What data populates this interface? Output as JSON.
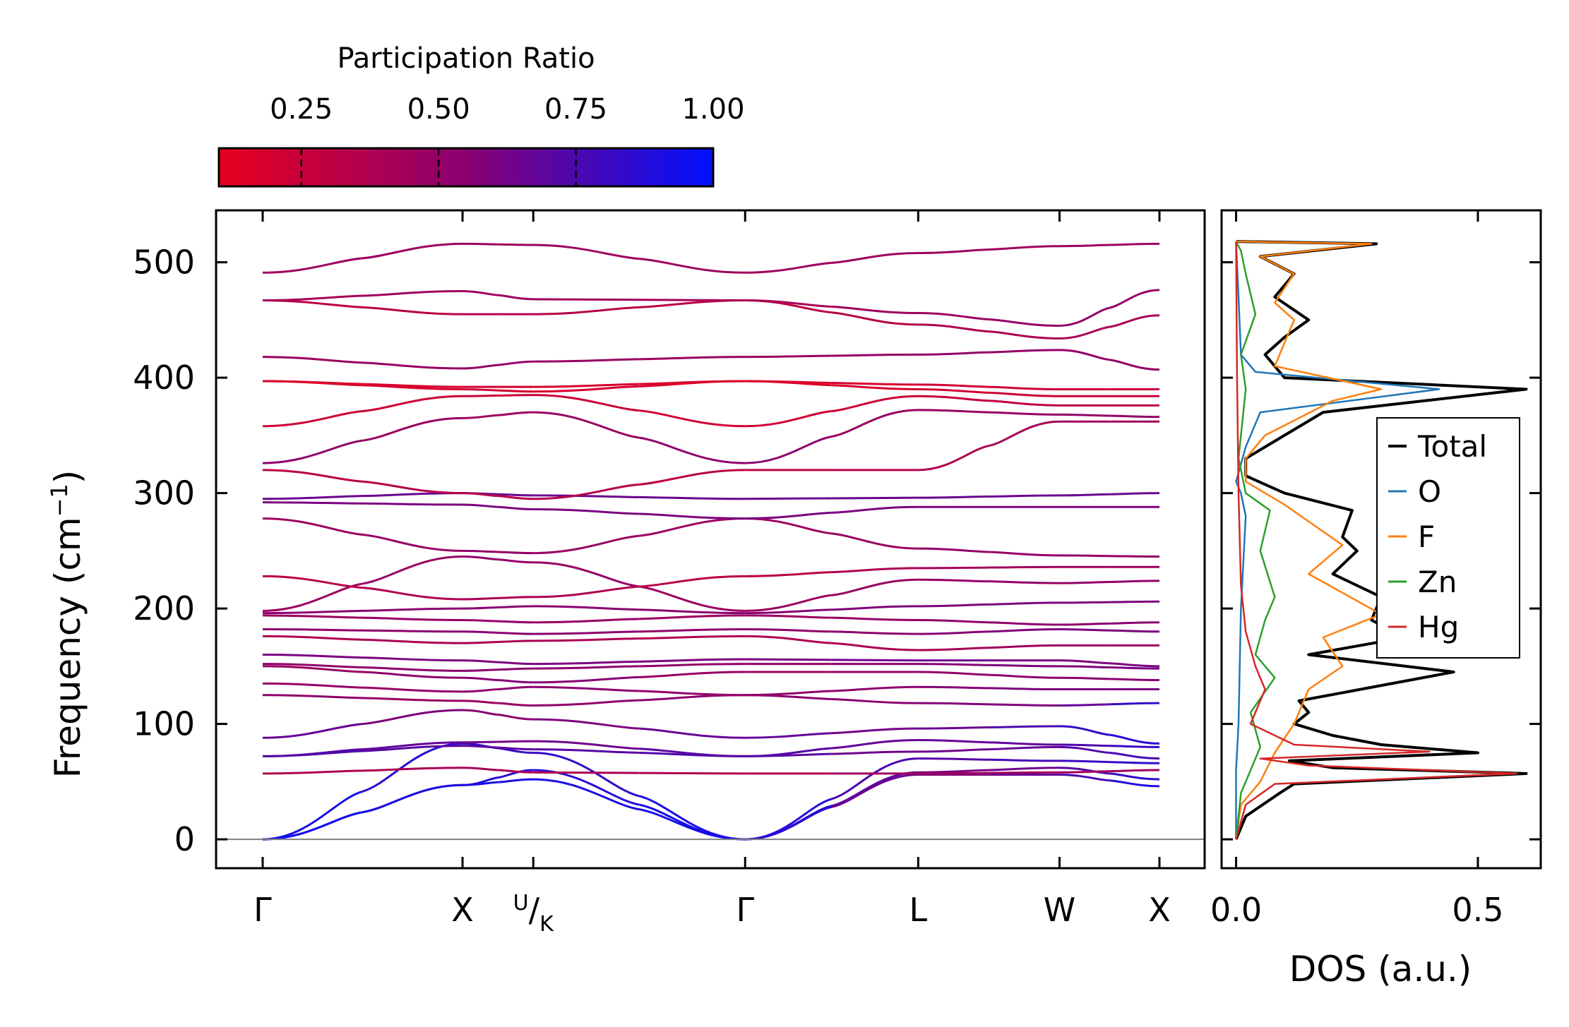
{
  "chart_data": [
    {
      "type": "line",
      "name": "phonon-band-structure",
      "ylabel": "Frequency (cm",
      "ylabel_sup": "−1",
      "ylabel_end": ")",
      "ylim": [
        -25,
        545
      ],
      "y_ticks": [
        0,
        100,
        200,
        300,
        400,
        500
      ],
      "k_path": [
        {
          "label": "Γ",
          "x": 0.0
        },
        {
          "label": "X",
          "x": 1.0
        },
        {
          "label": "U/K",
          "x": 1.354
        },
        {
          "label": "Γ",
          "x": 2.414
        },
        {
          "label": "L",
          "x": 3.28
        },
        {
          "label": "W",
          "x": 3.987
        },
        {
          "label": "X",
          "x": 4.487
        }
      ],
      "colorbar": {
        "title": "Participation Ratio",
        "range": [
          0.1,
          1.0
        ],
        "ticks": [
          "0.25",
          "0.50",
          "0.75",
          "1.00"
        ],
        "tick_values": [
          0.25,
          0.5,
          0.75,
          1.0
        ],
        "color_low": "#e8001e",
        "color_mid": "#8a0070",
        "color_high": "#0010ff"
      },
      "bands": [
        {
          "f": [
            0,
            47,
            52,
            0,
            56,
            56,
            46
          ],
          "pr": [
            0.95,
            0.95,
            0.9,
            0.95,
            0.55,
            0.7,
            0.95
          ]
        },
        {
          "f": [
            0,
            47,
            60,
            0,
            58,
            62,
            52
          ],
          "pr": [
            0.95,
            0.9,
            0.85,
            0.95,
            0.6,
            0.65,
            0.9
          ]
        },
        {
          "f": [
            0,
            83,
            75,
            0,
            70,
            68,
            66
          ],
          "pr": [
            0.95,
            0.85,
            0.8,
            0.95,
            0.7,
            0.8,
            0.85
          ]
        },
        {
          "f": [
            57,
            62,
            58,
            57,
            57,
            58,
            60
          ],
          "pr": [
            0.35,
            0.4,
            0.4,
            0.35,
            0.45,
            0.45,
            0.45
          ]
        },
        {
          "f": [
            72,
            81,
            78,
            72,
            76,
            80,
            70
          ],
          "pr": [
            0.75,
            0.7,
            0.7,
            0.75,
            0.6,
            0.7,
            0.8
          ]
        },
        {
          "f": [
            72,
            84,
            85,
            72,
            86,
            82,
            80
          ],
          "pr": [
            0.75,
            0.65,
            0.6,
            0.75,
            0.65,
            0.7,
            0.85
          ]
        },
        {
          "f": [
            88,
            112,
            104,
            88,
            96,
            98,
            83
          ],
          "pr": [
            0.7,
            0.55,
            0.55,
            0.7,
            0.6,
            0.8,
            0.9
          ]
        },
        {
          "f": [
            125,
            120,
            116,
            125,
            118,
            116,
            118
          ],
          "pr": [
            0.55,
            0.45,
            0.5,
            0.55,
            0.55,
            0.6,
            0.9
          ]
        },
        {
          "f": [
            135,
            128,
            132,
            125,
            132,
            130,
            130
          ],
          "pr": [
            0.5,
            0.5,
            0.55,
            0.5,
            0.55,
            0.6,
            0.6
          ]
        },
        {
          "f": [
            150,
            140,
            136,
            145,
            145,
            140,
            138
          ],
          "pr": [
            0.45,
            0.55,
            0.6,
            0.45,
            0.5,
            0.55,
            0.55
          ]
        },
        {
          "f": [
            152,
            146,
            148,
            152,
            152,
            150,
            148
          ],
          "pr": [
            0.5,
            0.55,
            0.55,
            0.5,
            0.55,
            0.6,
            0.6
          ]
        },
        {
          "f": [
            160,
            155,
            152,
            156,
            155,
            155,
            150
          ],
          "pr": [
            0.6,
            0.6,
            0.6,
            0.6,
            0.65,
            0.6,
            0.6
          ]
        },
        {
          "f": [
            176,
            170,
            172,
            176,
            164,
            168,
            168
          ],
          "pr": [
            0.35,
            0.4,
            0.4,
            0.35,
            0.4,
            0.45,
            0.45
          ]
        },
        {
          "f": [
            182,
            180,
            178,
            182,
            178,
            182,
            180
          ],
          "pr": [
            0.5,
            0.55,
            0.55,
            0.5,
            0.55,
            0.6,
            0.6
          ]
        },
        {
          "f": [
            194,
            190,
            188,
            194,
            190,
            186,
            188
          ],
          "pr": [
            0.45,
            0.5,
            0.5,
            0.45,
            0.5,
            0.55,
            0.55
          ]
        },
        {
          "f": [
            196,
            200,
            202,
            196,
            202,
            205,
            206
          ],
          "pr": [
            0.55,
            0.55,
            0.55,
            0.55,
            0.6,
            0.6,
            0.6
          ]
        },
        {
          "f": [
            198,
            245,
            240,
            198,
            225,
            222,
            224
          ],
          "pr": [
            0.45,
            0.5,
            0.5,
            0.45,
            0.5,
            0.5,
            0.5
          ]
        },
        {
          "f": [
            228,
            208,
            210,
            228,
            235,
            236,
            236
          ],
          "pr": [
            0.3,
            0.4,
            0.4,
            0.3,
            0.4,
            0.45,
            0.45
          ]
        },
        {
          "f": [
            278,
            250,
            248,
            278,
            252,
            246,
            245
          ],
          "pr": [
            0.45,
            0.5,
            0.5,
            0.45,
            0.5,
            0.5,
            0.5
          ]
        },
        {
          "f": [
            292,
            290,
            286,
            278,
            288,
            288,
            288
          ],
          "pr": [
            0.6,
            0.6,
            0.6,
            0.6,
            0.6,
            0.6,
            0.6
          ]
        },
        {
          "f": [
            295,
            300,
            298,
            295,
            296,
            298,
            300
          ],
          "pr": [
            0.65,
            0.65,
            0.65,
            0.65,
            0.65,
            0.65,
            0.65
          ]
        },
        {
          "f": [
            320,
            300,
            295,
            320,
            320,
            362,
            362
          ],
          "pr": [
            0.3,
            0.35,
            0.35,
            0.3,
            0.35,
            0.45,
            0.45
          ]
        },
        {
          "f": [
            326,
            365,
            370,
            326,
            372,
            368,
            366
          ],
          "pr": [
            0.55,
            0.45,
            0.45,
            0.55,
            0.45,
            0.5,
            0.5
          ]
        },
        {
          "f": [
            358,
            384,
            385,
            358,
            384,
            376,
            376
          ],
          "pr": [
            0.2,
            0.25,
            0.25,
            0.2,
            0.25,
            0.3,
            0.3
          ]
        },
        {
          "f": [
            397,
            390,
            388,
            397,
            390,
            384,
            384
          ],
          "pr": [
            0.15,
            0.2,
            0.2,
            0.15,
            0.2,
            0.25,
            0.25
          ]
        },
        {
          "f": [
            397,
            392,
            392,
            397,
            394,
            390,
            390
          ],
          "pr": [
            0.15,
            0.2,
            0.2,
            0.15,
            0.2,
            0.25,
            0.25
          ]
        },
        {
          "f": [
            418,
            408,
            414,
            418,
            420,
            424,
            407
          ],
          "pr": [
            0.45,
            0.5,
            0.5,
            0.45,
            0.5,
            0.5,
            0.5
          ]
        },
        {
          "f": [
            467,
            455,
            455,
            467,
            446,
            434,
            454
          ],
          "pr": [
            0.3,
            0.35,
            0.35,
            0.3,
            0.35,
            0.4,
            0.4
          ]
        },
        {
          "f": [
            467,
            475,
            468,
            467,
            456,
            445,
            476
          ],
          "pr": [
            0.4,
            0.45,
            0.45,
            0.4,
            0.45,
            0.5,
            0.5
          ]
        },
        {
          "f": [
            491,
            516,
            515,
            491,
            508,
            514,
            516
          ],
          "pr": [
            0.45,
            0.45,
            0.45,
            0.45,
            0.45,
            0.45,
            0.45
          ]
        }
      ]
    },
    {
      "type": "line",
      "name": "density-of-states",
      "xlabel": "DOS (a.u.)",
      "xlim": [
        -0.03,
        0.63
      ],
      "ylim": [
        -25,
        545
      ],
      "x_ticks": [
        "0.0",
        "0.5"
      ],
      "x_tick_values": [
        0.0,
        0.5
      ],
      "legend_position": "center-right",
      "series": [
        {
          "name": "Total",
          "color": "#000000",
          "points": [
            [
              0,
              0
            ],
            [
              0.02,
              20
            ],
            [
              0.09,
              40
            ],
            [
              0.12,
              48
            ],
            [
              0.6,
              57
            ],
            [
              0.2,
              62
            ],
            [
              0.11,
              68
            ],
            [
              0.5,
              75
            ],
            [
              0.3,
              82
            ],
            [
              0.2,
              90
            ],
            [
              0.12,
              100
            ],
            [
              0.15,
              110
            ],
            [
              0.13,
              120
            ],
            [
              0.45,
              145
            ],
            [
              0.15,
              160
            ],
            [
              0.35,
              175
            ],
            [
              0.28,
              190
            ],
            [
              0.3,
              210
            ],
            [
              0.2,
              230
            ],
            [
              0.25,
              250
            ],
            [
              0.22,
              262
            ],
            [
              0.24,
              285
            ],
            [
              0.1,
              300
            ],
            [
              0.02,
              315
            ],
            [
              0.02,
              330
            ],
            [
              0.08,
              345
            ],
            [
              0.18,
              370
            ],
            [
              0.6,
              390
            ],
            [
              0.1,
              400
            ],
            [
              0.06,
              420
            ],
            [
              0.1,
              435
            ],
            [
              0.15,
              450
            ],
            [
              0.08,
              470
            ],
            [
              0.12,
              490
            ],
            [
              0.05,
              505
            ],
            [
              0.29,
              516
            ],
            [
              0,
              518
            ]
          ]
        },
        {
          "name": "O",
          "color": "#1f77b4",
          "points": [
            [
              0,
              0
            ],
            [
              0,
              60
            ],
            [
              0.005,
              100
            ],
            [
              0.01,
              200
            ],
            [
              0.02,
              280
            ],
            [
              0.01,
              300
            ],
            [
              0,
              310
            ],
            [
              0.02,
              340
            ],
            [
              0.05,
              370
            ],
            [
              0.42,
              390
            ],
            [
              0.04,
              405
            ],
            [
              0.01,
              420
            ],
            [
              0.005,
              470
            ],
            [
              0,
              518
            ]
          ]
        },
        {
          "name": "F",
          "color": "#ff7f0e",
          "points": [
            [
              0,
              0
            ],
            [
              0.01,
              30
            ],
            [
              0.05,
              50
            ],
            [
              0.08,
              75
            ],
            [
              0.12,
              100
            ],
            [
              0.15,
              130
            ],
            [
              0.22,
              150
            ],
            [
              0.18,
              175
            ],
            [
              0.3,
              195
            ],
            [
              0.15,
              230
            ],
            [
              0.22,
              255
            ],
            [
              0.1,
              290
            ],
            [
              0.02,
              310
            ],
            [
              0.02,
              330
            ],
            [
              0.06,
              350
            ],
            [
              0.2,
              380
            ],
            [
              0.3,
              390
            ],
            [
              0.08,
              410
            ],
            [
              0.12,
              450
            ],
            [
              0.08,
              465
            ],
            [
              0.12,
              490
            ],
            [
              0.05,
              505
            ],
            [
              0.28,
              516
            ],
            [
              0,
              518
            ]
          ]
        },
        {
          "name": "Zn",
          "color": "#2ca02c",
          "points": [
            [
              0,
              0
            ],
            [
              0.01,
              40
            ],
            [
              0.05,
              80
            ],
            [
              0.03,
              110
            ],
            [
              0.08,
              140
            ],
            [
              0.04,
              160
            ],
            [
              0.06,
              190
            ],
            [
              0.08,
              210
            ],
            [
              0.05,
              250
            ],
            [
              0.07,
              285
            ],
            [
              0.02,
              300
            ],
            [
              0.005,
              330
            ],
            [
              0.02,
              390
            ],
            [
              0.01,
              420
            ],
            [
              0.04,
              455
            ],
            [
              0.02,
              490
            ],
            [
              0.01,
              510
            ],
            [
              0,
              518
            ]
          ]
        },
        {
          "name": "Hg",
          "color": "#d62728",
          "points": [
            [
              0,
              0
            ],
            [
              0.02,
              30
            ],
            [
              0.08,
              48
            ],
            [
              0.58,
              57
            ],
            [
              0.15,
              64
            ],
            [
              0.05,
              70
            ],
            [
              0.4,
              76
            ],
            [
              0.12,
              82
            ],
            [
              0.03,
              100
            ],
            [
              0.06,
              130
            ],
            [
              0.04,
              150
            ],
            [
              0.02,
              180
            ],
            [
              0.01,
              220
            ],
            [
              0.005,
              300
            ],
            [
              0.002,
              400
            ],
            [
              0,
              518
            ]
          ]
        }
      ]
    }
  ]
}
